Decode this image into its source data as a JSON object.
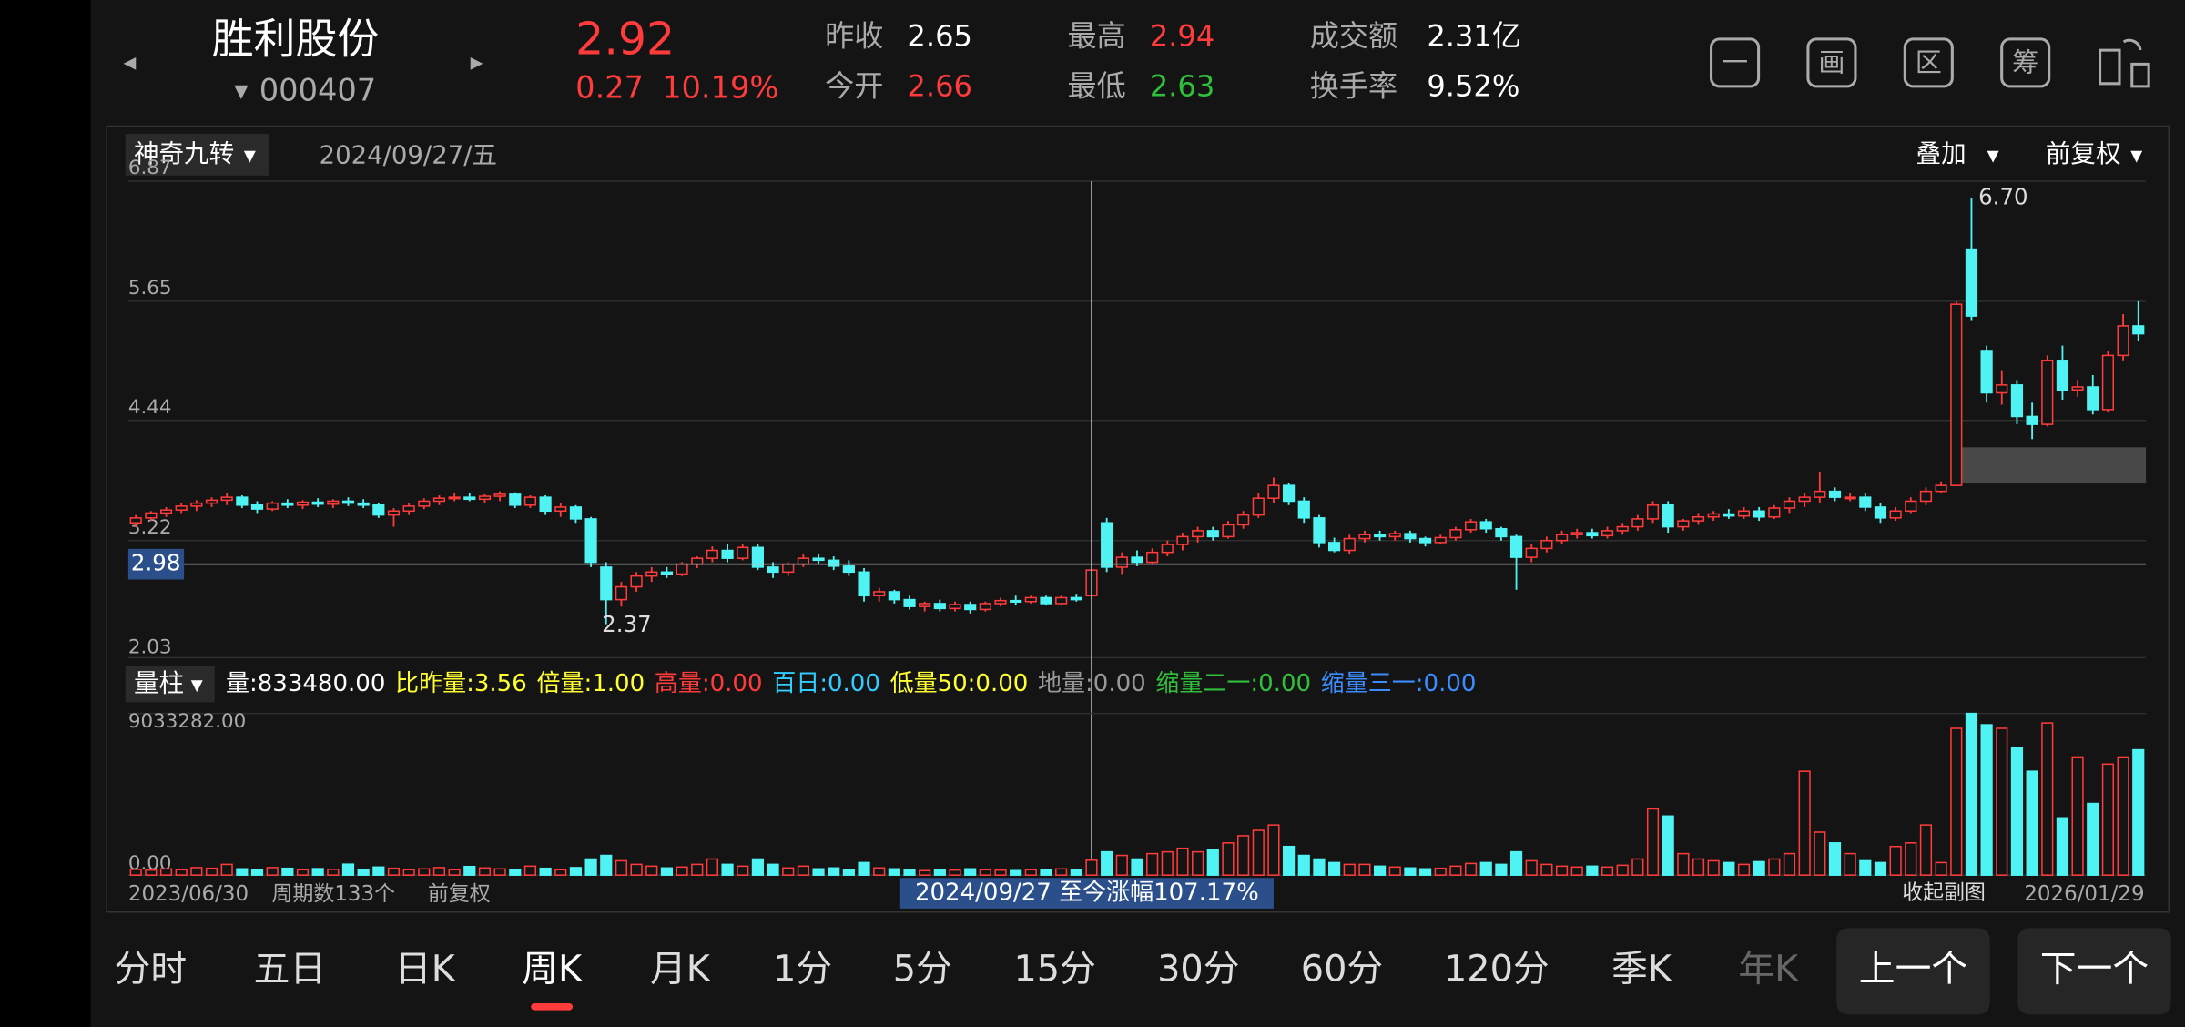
{
  "header": {
    "name": "胜利股份",
    "code": "000407",
    "price": "2.92",
    "change": "0.27",
    "change_pct": "10.19%",
    "stats": [
      {
        "label": "昨收",
        "value": "2.65",
        "color": "#ffffff"
      },
      {
        "label": "今开",
        "value": "2.66",
        "color": "#ff3b3b"
      },
      {
        "label": "最高",
        "value": "2.94",
        "color": "#ff3b3b"
      },
      {
        "label": "最低",
        "value": "2.63",
        "color": "#2fbf3a"
      },
      {
        "label": "成交额",
        "value": "2.31亿",
        "color": "#ffffff"
      },
      {
        "label": "换手率",
        "value": "9.52%",
        "color": "#ffffff"
      }
    ],
    "tools": [
      "一",
      "画",
      "区",
      "筹"
    ]
  },
  "chart_panel": {
    "indicator": "神奇九转",
    "date": "2024/09/27/五",
    "overlay": "叠加",
    "adjust": "前复权"
  },
  "chart_data": {
    "type": "candlestick",
    "ylim": [
      2.03,
      6.87
    ],
    "yticks": [
      6.87,
      5.65,
      4.44,
      3.22,
      2.03
    ],
    "crosshair": 2.98,
    "crosshair_index": 63,
    "high_label": {
      "value": 6.7,
      "label": "6.70"
    },
    "low_label": 2.37,
    "up_color": "#ff3b3b",
    "down_color": "#4ff3f3",
    "candles": [
      [
        3.4,
        3.48,
        3.36,
        3.45
      ],
      [
        3.45,
        3.52,
        3.42,
        3.5
      ],
      [
        3.5,
        3.56,
        3.46,
        3.53
      ],
      [
        3.53,
        3.6,
        3.5,
        3.57
      ],
      [
        3.57,
        3.63,
        3.52,
        3.6
      ],
      [
        3.6,
        3.66,
        3.56,
        3.63
      ],
      [
        3.63,
        3.7,
        3.58,
        3.66
      ],
      [
        3.66,
        3.68,
        3.55,
        3.58
      ],
      [
        3.58,
        3.62,
        3.5,
        3.54
      ],
      [
        3.54,
        3.62,
        3.52,
        3.6
      ],
      [
        3.6,
        3.64,
        3.55,
        3.58
      ],
      [
        3.58,
        3.63,
        3.54,
        3.61
      ],
      [
        3.61,
        3.65,
        3.56,
        3.59
      ],
      [
        3.59,
        3.64,
        3.55,
        3.62
      ],
      [
        3.62,
        3.66,
        3.57,
        3.6
      ],
      [
        3.6,
        3.64,
        3.55,
        3.58
      ],
      [
        3.58,
        3.6,
        3.45,
        3.48
      ],
      [
        3.48,
        3.55,
        3.36,
        3.52
      ],
      [
        3.52,
        3.6,
        3.48,
        3.57
      ],
      [
        3.57,
        3.65,
        3.54,
        3.62
      ],
      [
        3.62,
        3.68,
        3.58,
        3.65
      ],
      [
        3.65,
        3.7,
        3.62,
        3.66
      ],
      [
        3.66,
        3.7,
        3.62,
        3.64
      ],
      [
        3.64,
        3.69,
        3.6,
        3.67
      ],
      [
        3.67,
        3.72,
        3.62,
        3.69
      ],
      [
        3.69,
        3.71,
        3.55,
        3.58
      ],
      [
        3.58,
        3.68,
        3.55,
        3.66
      ],
      [
        3.66,
        3.68,
        3.48,
        3.52
      ],
      [
        3.52,
        3.6,
        3.46,
        3.56
      ],
      [
        3.56,
        3.58,
        3.4,
        3.44
      ],
      [
        3.44,
        3.46,
        2.95,
        3.0
      ],
      [
        2.95,
        3.0,
        2.37,
        2.62
      ],
      [
        2.62,
        2.8,
        2.55,
        2.75
      ],
      [
        2.75,
        2.9,
        2.7,
        2.86
      ],
      [
        2.86,
        2.95,
        2.8,
        2.9
      ],
      [
        2.9,
        2.95,
        2.84,
        2.88
      ],
      [
        2.88,
        3.0,
        2.86,
        2.98
      ],
      [
        2.98,
        3.06,
        2.94,
        3.04
      ],
      [
        3.04,
        3.16,
        3.0,
        3.12
      ],
      [
        3.12,
        3.18,
        3.0,
        3.04
      ],
      [
        3.04,
        3.18,
        3.02,
        3.15
      ],
      [
        3.15,
        3.18,
        2.92,
        2.95
      ],
      [
        2.95,
        3.0,
        2.84,
        2.9
      ],
      [
        2.9,
        3.0,
        2.86,
        2.98
      ],
      [
        2.98,
        3.08,
        2.95,
        3.04
      ],
      [
        3.04,
        3.08,
        2.98,
        3.02
      ],
      [
        3.02,
        3.06,
        2.92,
        2.96
      ],
      [
        2.96,
        3.02,
        2.86,
        2.9
      ],
      [
        2.9,
        2.94,
        2.6,
        2.66
      ],
      [
        2.66,
        2.74,
        2.6,
        2.7
      ],
      [
        2.7,
        2.72,
        2.58,
        2.62
      ],
      [
        2.62,
        2.66,
        2.52,
        2.55
      ],
      [
        2.55,
        2.6,
        2.5,
        2.58
      ],
      [
        2.58,
        2.62,
        2.5,
        2.53
      ],
      [
        2.53,
        2.6,
        2.5,
        2.57
      ],
      [
        2.57,
        2.6,
        2.48,
        2.52
      ],
      [
        2.52,
        2.6,
        2.5,
        2.58
      ],
      [
        2.58,
        2.64,
        2.55,
        2.61
      ],
      [
        2.61,
        2.66,
        2.56,
        2.6
      ],
      [
        2.6,
        2.66,
        2.58,
        2.64
      ],
      [
        2.64,
        2.66,
        2.56,
        2.58
      ],
      [
        2.58,
        2.66,
        2.56,
        2.64
      ],
      [
        2.64,
        2.68,
        2.6,
        2.62
      ],
      [
        2.66,
        2.94,
        2.63,
        2.92
      ],
      [
        3.4,
        3.45,
        2.9,
        2.95
      ],
      [
        2.95,
        3.1,
        2.88,
        3.05
      ],
      [
        3.05,
        3.12,
        2.96,
        3.0
      ],
      [
        3.0,
        3.14,
        2.98,
        3.1
      ],
      [
        3.1,
        3.22,
        3.06,
        3.18
      ],
      [
        3.18,
        3.3,
        3.12,
        3.26
      ],
      [
        3.26,
        3.36,
        3.2,
        3.32
      ],
      [
        3.32,
        3.36,
        3.22,
        3.26
      ],
      [
        3.26,
        3.42,
        3.24,
        3.38
      ],
      [
        3.38,
        3.52,
        3.34,
        3.48
      ],
      [
        3.48,
        3.7,
        3.45,
        3.65
      ],
      [
        3.65,
        3.86,
        3.6,
        3.78
      ],
      [
        3.78,
        3.8,
        3.58,
        3.62
      ],
      [
        3.62,
        3.66,
        3.4,
        3.45
      ],
      [
        3.45,
        3.48,
        3.15,
        3.2
      ],
      [
        3.2,
        3.25,
        3.1,
        3.12
      ],
      [
        3.12,
        3.28,
        3.08,
        3.24
      ],
      [
        3.24,
        3.32,
        3.2,
        3.28
      ],
      [
        3.28,
        3.32,
        3.22,
        3.26
      ],
      [
        3.26,
        3.32,
        3.22,
        3.29
      ],
      [
        3.29,
        3.32,
        3.2,
        3.24
      ],
      [
        3.24,
        3.26,
        3.16,
        3.2
      ],
      [
        3.2,
        3.28,
        3.18,
        3.25
      ],
      [
        3.25,
        3.36,
        3.22,
        3.33
      ],
      [
        3.33,
        3.44,
        3.3,
        3.41
      ],
      [
        3.41,
        3.44,
        3.3,
        3.34
      ],
      [
        3.34,
        3.36,
        3.22,
        3.26
      ],
      [
        3.26,
        3.28,
        2.72,
        3.05
      ],
      [
        3.05,
        3.18,
        3.0,
        3.14
      ],
      [
        3.14,
        3.26,
        3.1,
        3.22
      ],
      [
        3.22,
        3.32,
        3.18,
        3.28
      ],
      [
        3.28,
        3.34,
        3.24,
        3.3
      ],
      [
        3.3,
        3.34,
        3.24,
        3.27
      ],
      [
        3.27,
        3.36,
        3.24,
        3.32
      ],
      [
        3.32,
        3.4,
        3.28,
        3.36
      ],
      [
        3.36,
        3.48,
        3.32,
        3.44
      ],
      [
        3.44,
        3.62,
        3.4,
        3.58
      ],
      [
        3.58,
        3.62,
        3.3,
        3.36
      ],
      [
        3.36,
        3.44,
        3.32,
        3.42
      ],
      [
        3.42,
        3.5,
        3.38,
        3.46
      ],
      [
        3.46,
        3.52,
        3.42,
        3.49
      ],
      [
        3.49,
        3.54,
        3.44,
        3.47
      ],
      [
        3.47,
        3.56,
        3.44,
        3.52
      ],
      [
        3.52,
        3.56,
        3.42,
        3.46
      ],
      [
        3.46,
        3.58,
        3.44,
        3.55
      ],
      [
        3.55,
        3.66,
        3.5,
        3.62
      ],
      [
        3.62,
        3.7,
        3.56,
        3.66
      ],
      [
        3.66,
        3.92,
        3.6,
        3.72
      ],
      [
        3.72,
        3.76,
        3.62,
        3.66
      ],
      [
        3.66,
        3.7,
        3.62,
        3.66
      ],
      [
        3.66,
        3.7,
        3.52,
        3.56
      ],
      [
        3.56,
        3.6,
        3.4,
        3.45
      ],
      [
        3.45,
        3.56,
        3.42,
        3.52
      ],
      [
        3.52,
        3.66,
        3.5,
        3.62
      ],
      [
        3.62,
        3.76,
        3.58,
        3.72
      ],
      [
        3.72,
        3.82,
        3.7,
        3.78
      ],
      [
        3.78,
        5.65,
        3.78,
        5.62
      ],
      [
        6.18,
        6.7,
        5.45,
        5.5
      ],
      [
        5.15,
        5.2,
        4.62,
        4.72
      ],
      [
        4.72,
        4.95,
        4.6,
        4.8
      ],
      [
        4.8,
        4.85,
        4.4,
        4.48
      ],
      [
        4.48,
        4.62,
        4.25,
        4.4
      ],
      [
        4.4,
        5.1,
        4.38,
        5.05
      ],
      [
        5.05,
        5.2,
        4.65,
        4.75
      ],
      [
        4.75,
        4.85,
        4.68,
        4.78
      ],
      [
        4.78,
        4.9,
        4.5,
        4.55
      ],
      [
        4.55,
        5.15,
        4.52,
        5.1
      ],
      [
        5.1,
        5.52,
        5.05,
        5.4
      ],
      [
        5.4,
        5.65,
        5.25,
        5.32
      ]
    ]
  },
  "volume_panel": {
    "indicator": "量柱",
    "stats": [
      {
        "text": "量:833480.00",
        "color": "#ffffff"
      },
      {
        "text": "比昨量:3.56",
        "color": "#ffff33"
      },
      {
        "text": "倍量:1.00",
        "color": "#ffff33"
      },
      {
        "text": "高量:0.00",
        "color": "#ff3b3b"
      },
      {
        "text": "百日:0.00",
        "color": "#33ccff"
      },
      {
        "text": "低量50:0.00",
        "color": "#ffff33"
      },
      {
        "text": "地量:0.00",
        "color": "#999999"
      },
      {
        "text": "缩量二一:0.00",
        "color": "#2fbf3a"
      },
      {
        "text": "缩量三一:0.00",
        "color": "#3b8cff"
      }
    ]
  },
  "volume_data": {
    "type": "bar",
    "ylim": [
      0,
      9033282
    ],
    "yticks": [
      {
        "value": 9033282,
        "label": "9033282.00"
      },
      {
        "value": 0,
        "label": "0.00"
      }
    ],
    "values": [
      320000,
      280000,
      350000,
      300000,
      420000,
      380000,
      600000,
      350000,
      300000,
      420000,
      380000,
      300000,
      360000,
      320000,
      610000,
      300000,
      450000,
      380000,
      300000,
      350000,
      420000,
      300000,
      480000,
      400000,
      350000,
      320000,
      500000,
      380000,
      300000,
      420000,
      900000,
      1100000,
      800000,
      600000,
      500000,
      400000,
      450000,
      600000,
      900000,
      600000,
      500000,
      900000,
      600000,
      400000,
      500000,
      350000,
      400000,
      300000,
      700000,
      400000,
      350000,
      300000,
      250000,
      300000,
      280000,
      350000,
      300000,
      280000,
      250000,
      300000,
      280000,
      350000,
      300000,
      833480,
      1300000,
      1100000,
      900000,
      1200000,
      1300000,
      1500000,
      1300000,
      1400000,
      1800000,
      2200000,
      2500000,
      2800000,
      1600000,
      1100000,
      900000,
      700000,
      600000,
      600000,
      500000,
      450000,
      400000,
      350000,
      380000,
      500000,
      650000,
      700000,
      600000,
      1300000,
      800000,
      600000,
      500000,
      450000,
      500000,
      450000,
      550000,
      900000,
      3700000,
      3300000,
      1200000,
      900000,
      800000,
      700000,
      600000,
      750000,
      900000,
      1200000,
      5800000,
      2400000,
      1800000,
      1200000,
      800000,
      700000,
      1600000,
      1800000,
      2800000,
      700000,
      8200000,
      9033282,
      8400000,
      8200000,
      7100000,
      5800000,
      8500000,
      3200000,
      6600000,
      4000000,
      6200000,
      6600000,
      7000000
    ]
  },
  "footer": {
    "start": "2023/06/30",
    "periods": "周期数133个",
    "adjust": "前复权",
    "range_gain": "2024/09/27 至今涨幅107.17%",
    "collapse": "收起副图",
    "end": "2026/01/29"
  },
  "tabs": [
    "分时",
    "五日",
    "日K",
    "周K",
    "月K",
    "1分",
    "5分",
    "15分",
    "30分",
    "60分",
    "120分",
    "季K",
    "年K"
  ],
  "active_tab": 3,
  "buttons": [
    "上一个",
    "下一个"
  ]
}
